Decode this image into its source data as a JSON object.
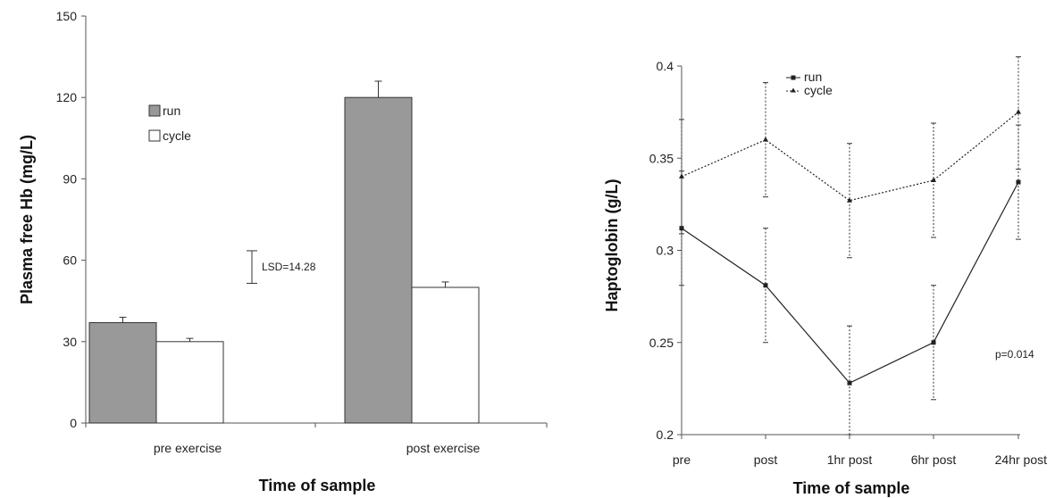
{
  "chart_data": [
    {
      "type": "bar",
      "categories": [
        "pre exercise",
        "post exercise"
      ],
      "series": [
        {
          "name": "run",
          "values": [
            37,
            120
          ],
          "errors": [
            2,
            6
          ],
          "color": "#999999"
        },
        {
          "name": "cycle",
          "values": [
            30,
            50
          ],
          "errors": [
            1.2,
            2
          ],
          "color": "#ffffff"
        }
      ],
      "title": "",
      "xlabel": "Time of sample",
      "ylabel": "Plasma free Hb (mg/L)",
      "ylim": [
        0,
        150
      ],
      "yticks": [
        "0",
        "30",
        "60",
        "90",
        "120",
        "150"
      ],
      "grid": false,
      "legend": "upper-left",
      "annotation": {
        "text": "LSD=14.28",
        "low": 51.5,
        "high": 63.5
      }
    },
    {
      "type": "line",
      "categories": [
        "pre",
        "post",
        "1hr post",
        "6hr post",
        "24hr post"
      ],
      "series": [
        {
          "name": "run",
          "values": [
            0.312,
            0.281,
            0.228,
            0.25,
            0.337
          ],
          "errors": [
            0.031,
            0.031,
            0.031,
            0.031,
            0.031
          ],
          "style": "solid",
          "marker": "square"
        },
        {
          "name": "cycle",
          "values": [
            0.34,
            0.36,
            0.327,
            0.338,
            0.375
          ],
          "errors": [
            0.031,
            0.031,
            0.031,
            0.031,
            0.031
          ],
          "style": "dotted",
          "marker": "triangle"
        }
      ],
      "title": "",
      "xlabel": "Time of sample",
      "ylabel": "Haptoglobin (g/L)",
      "ylim": [
        0.2,
        0.4
      ],
      "yticks": [
        "0.2",
        "0.25",
        "0.3",
        "0.35",
        "0.4"
      ],
      "grid": false,
      "legend": "upper-left",
      "annotation": {
        "text": "p=0.014"
      }
    }
  ]
}
